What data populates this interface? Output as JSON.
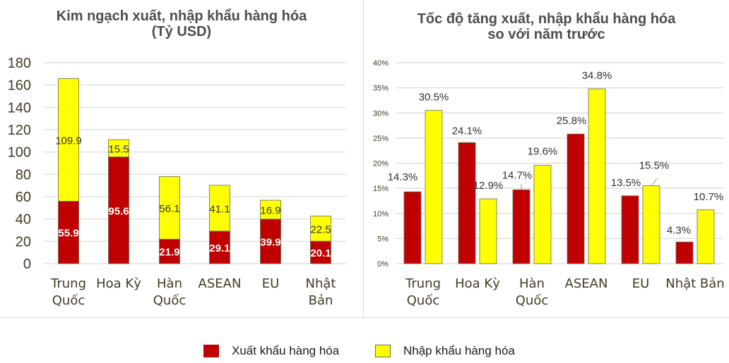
{
  "colors": {
    "export": "#C00000",
    "import": "#FFFF00",
    "bar_border": "#6b6b4a",
    "grid": "#d9d9d9",
    "axis_text": "#403c24",
    "title_text": "#4d4d4d"
  },
  "left_chart": {
    "title_line1": "Kim ngạch xuất, nhập khẩu hàng hóa",
    "title_line2": "(Tỷ USD)"
  },
  "right_chart": {
    "title_line1": "Tốc độ tăng xuất, nhập khẩu hàng hóa",
    "title_line2": "so với năm trước"
  },
  "legend": {
    "export_label": "Xuất khẩu hàng hóa",
    "import_label": "Nhập khẩu hàng hóa"
  },
  "chart_data": [
    {
      "type": "bar",
      "stacked": true,
      "title": "Kim ngạch xuất, nhập khẩu hàng hóa (Tỷ USD)",
      "xlabel": "",
      "ylabel": "",
      "ylim": [
        0,
        180
      ],
      "yticks": [
        0,
        20,
        40,
        60,
        80,
        100,
        120,
        140,
        160,
        180
      ],
      "grid": true,
      "legend_position": "bottom",
      "categories": [
        "Trung Quốc",
        "Hoa Kỳ",
        "Hàn Quốc",
        "ASEAN",
        "EU",
        "Nhật Bản"
      ],
      "category_lines": [
        [
          "Trung",
          "Quốc"
        ],
        [
          "Hoa Kỳ"
        ],
        [
          "Hàn",
          "Quốc"
        ],
        [
          "ASEAN"
        ],
        [
          "EU"
        ],
        [
          "Nhật",
          "Bản"
        ]
      ],
      "series": [
        {
          "name": "Xuất khẩu hàng hóa",
          "values": [
            55.9,
            95.6,
            21.9,
            29.1,
            39.9,
            20.1
          ]
        },
        {
          "name": "Nhập khẩu hàng hóa",
          "values": [
            109.9,
            15.5,
            56.1,
            41.1,
            16.9,
            22.5
          ]
        }
      ]
    },
    {
      "type": "bar",
      "stacked": false,
      "title": "Tốc độ tăng xuất, nhập khẩu hàng hóa so với năm trước",
      "xlabel": "",
      "ylabel": "",
      "ylim": [
        0,
        40
      ],
      "yticks": [
        "0%",
        "5%",
        "10%",
        "15%",
        "20%",
        "25%",
        "30%",
        "35%",
        "40%"
      ],
      "grid": true,
      "legend_position": "bottom",
      "categories": [
        "Trung Quốc",
        "Hoa Kỳ",
        "Hàn Quốc",
        "ASEAN",
        "EU",
        "Nhật Bản"
      ],
      "category_lines": [
        [
          "Trung",
          "Quốc"
        ],
        [
          "Hoa Kỳ"
        ],
        [
          "Hàn",
          "Quốc"
        ],
        [
          "ASEAN"
        ],
        [
          "EU"
        ],
        [
          "Nhật Bản"
        ]
      ],
      "series": [
        {
          "name": "Xuất khẩu hàng hóa",
          "values": [
            14.3,
            24.1,
            14.7,
            25.8,
            13.5,
            4.3
          ]
        },
        {
          "name": "Nhập khẩu hàng hóa",
          "values": [
            30.5,
            12.9,
            19.6,
            34.8,
            15.5,
            10.7
          ]
        }
      ]
    }
  ]
}
